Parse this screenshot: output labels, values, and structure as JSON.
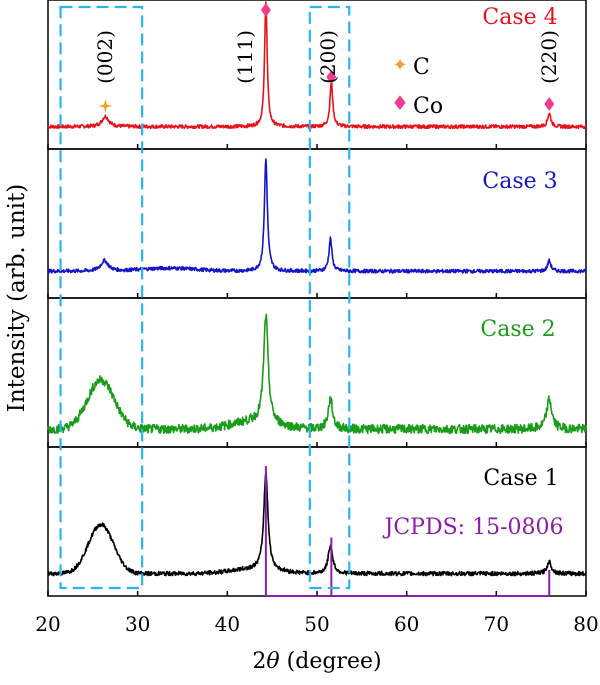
{
  "chart_data": {
    "type": "line",
    "xlabel_pre": "2",
    "xlabel_theta": "θ",
    "xlabel_post": " (degree)",
    "ylabel": "Intensity (arb. unit)",
    "xlim": [
      20,
      80
    ],
    "xticks": [
      "20",
      "30",
      "40",
      "50",
      "60",
      "70",
      "80"
    ],
    "colors": {
      "case4": "#e8121c",
      "case3": "#1515c8",
      "case2": "#1a9c1a",
      "case1": "#000000",
      "jcpds": "#8b1fa9",
      "box": "#29b6f0",
      "carbon": "#f5a023",
      "cobalt": "#ee3d8c"
    },
    "series": [
      {
        "name": "Case 4",
        "color": "#e8121c",
        "baseline": 0.15,
        "noise": 0.012,
        "broad": [],
        "peaks": [
          {
            "x": 26.4,
            "h": 0.07,
            "w": 0.45
          },
          {
            "x": 44.3,
            "h": 0.85,
            "w": 0.17
          },
          {
            "x": 51.6,
            "h": 0.3,
            "w": 0.19
          },
          {
            "x": 75.9,
            "h": 0.09,
            "w": 0.22
          }
        ]
      },
      {
        "name": "Case 3",
        "color": "#1515c8",
        "baseline": 0.18,
        "noise": 0.012,
        "broad": [
          {
            "x": 33.5,
            "h": 0.02,
            "w": 3.0
          }
        ],
        "peaks": [
          {
            "x": 26.3,
            "h": 0.07,
            "w": 0.5
          },
          {
            "x": 44.3,
            "h": 0.75,
            "w": 0.2
          },
          {
            "x": 51.5,
            "h": 0.22,
            "w": 0.2
          },
          {
            "x": 75.9,
            "h": 0.07,
            "w": 0.22
          }
        ]
      },
      {
        "name": "Case 2",
        "color": "#1a9c1a",
        "baseline": 0.12,
        "noise": 0.03,
        "broad": [
          {
            "x": 25.9,
            "h": 0.33,
            "w": 1.5
          },
          {
            "x": 43.0,
            "h": 0.05,
            "w": 2.5
          }
        ],
        "peaks": [
          {
            "x": 44.3,
            "h": 0.72,
            "w": 0.3
          },
          {
            "x": 51.5,
            "h": 0.2,
            "w": 0.3
          },
          {
            "x": 75.9,
            "h": 0.2,
            "w": 0.35
          }
        ]
      },
      {
        "name": "Case 1",
        "color": "#000000",
        "baseline": 0.15,
        "noise": 0.014,
        "broad": [
          {
            "x": 25.9,
            "h": 0.33,
            "w": 1.4
          },
          {
            "x": 43.0,
            "h": 0.03,
            "w": 2.5
          }
        ],
        "peaks": [
          {
            "x": 44.3,
            "h": 0.65,
            "w": 0.28
          },
          {
            "x": 51.5,
            "h": 0.19,
            "w": 0.3
          },
          {
            "x": 75.9,
            "h": 0.08,
            "w": 0.3
          }
        ]
      }
    ],
    "peak_labels": [
      {
        "text": "(002)",
        "x": 26.4
      },
      {
        "text": "(111)",
        "x": 44.3
      },
      {
        "text": "(200)",
        "x": 51.6
      },
      {
        "text": "(220)",
        "x": 75.9
      }
    ],
    "legend_markers": [
      {
        "symbol": "✦",
        "label": "C"
      },
      {
        "symbol": "♦",
        "label": "Co"
      }
    ],
    "reference": {
      "label": "JCPDS: 15-0806",
      "lines": [
        {
          "x": 44.3,
          "h": 1.0
        },
        {
          "x": 51.6,
          "h": 0.45
        },
        {
          "x": 75.9,
          "h": 0.2
        }
      ]
    },
    "highlight_boxes": [
      {
        "x0": 21.4,
        "x1": 30.5
      },
      {
        "x0": 49.2,
        "x1": 53.6
      }
    ]
  }
}
